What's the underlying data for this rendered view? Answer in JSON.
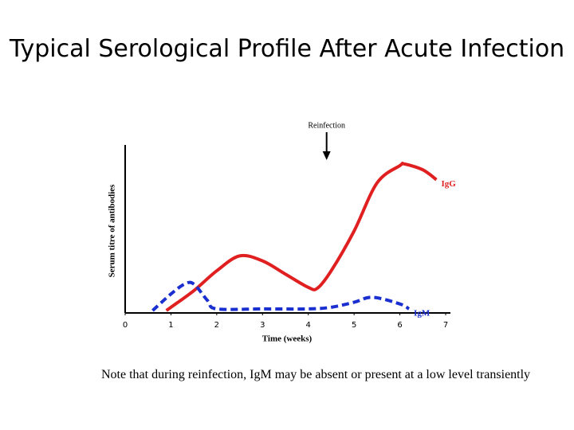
{
  "chart_data": {
    "type": "line",
    "title": "Typical Serological Profile After Acute Infection",
    "x_label": "Time (weeks)",
    "y_label": "Serum titre of antibodies",
    "xlim": [
      0,
      7
    ],
    "xticks": [
      0,
      1,
      2,
      3,
      4,
      5,
      6,
      7
    ],
    "ylim": [
      0,
      10
    ],
    "series": [
      {
        "name": "IgG",
        "color": "#e02020",
        "dash": false,
        "x": [
          0.9,
          1.0,
          1.5,
          2.0,
          2.5,
          3.0,
          3.5,
          4.0,
          4.2,
          4.5,
          5.0,
          5.5,
          6.0,
          6.1,
          6.5,
          6.8
        ],
        "values": [
          0,
          0.2,
          1.2,
          2.4,
          3.3,
          3.0,
          2.2,
          1.4,
          1.35,
          2.4,
          4.8,
          7.7,
          8.75,
          8.85,
          8.5,
          7.9
        ]
      },
      {
        "name": "IgM",
        "color": "#1a2fd0",
        "dash": true,
        "x": [
          0.6,
          1.0,
          1.3,
          1.5,
          1.8,
          2.0,
          3.0,
          4.0,
          4.5,
          5.0,
          5.4,
          6.0,
          6.2
        ],
        "values": [
          0,
          1.0,
          1.6,
          1.6,
          0.6,
          0.1,
          0.1,
          0.1,
          0.2,
          0.5,
          0.8,
          0.4,
          0.1
        ]
      }
    ],
    "annotations": [
      {
        "text": "Reinfection",
        "x": 4.4
      }
    ]
  },
  "note": "Note that during reinfection, IgM may be absent or present at a low level transiently"
}
